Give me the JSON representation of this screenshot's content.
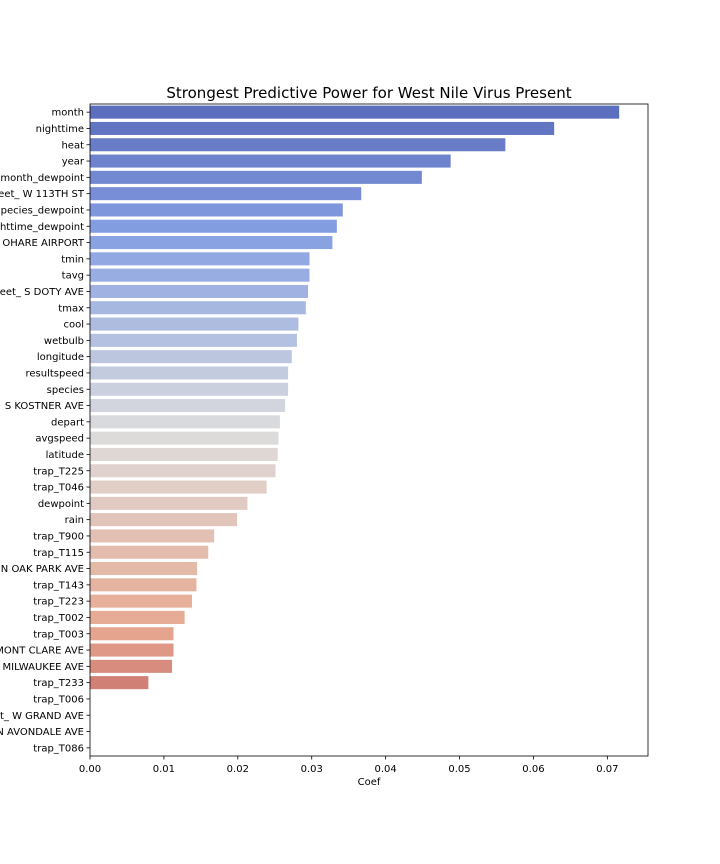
{
  "chart_data": {
    "type": "bar",
    "orientation": "horizontal",
    "title": "Strongest Predictive Power for West Nile Virus Present",
    "xlabel": "Coef",
    "ylabel": "",
    "xlim": [
      0,
      0.0755
    ],
    "xticks": [
      "0.00",
      "0.01",
      "0.02",
      "0.03",
      "0.04",
      "0.05",
      "0.06",
      "0.07"
    ],
    "grid": false,
    "colormap": "coolwarm",
    "categories": [
      "month",
      "nighttime",
      "heat",
      "year",
      "month_dewpoint",
      "eet_ W 113TH ST",
      "pecies_dewpoint",
      "httime_dewpoint",
      "OHARE AIRPORT",
      "tmin",
      "tavg",
      "eet_ S DOTY AVE",
      "tmax",
      "cool",
      "wetbulb",
      "longitude",
      "resultspeed",
      "species",
      "S KOSTNER AVE",
      "depart",
      "avgspeed",
      "latitude",
      "trap_T225",
      "trap_T046",
      "dewpoint",
      "rain",
      "trap_T900",
      "trap_T115",
      "N OAK PARK AVE",
      "trap_T143",
      "trap_T223",
      "trap_T002",
      "trap_T003",
      "MONT CLARE AVE",
      "MILWAUKEE AVE",
      "trap_T233",
      "trap_T006",
      "t_ W GRAND AVE",
      "N AVONDALE AVE",
      "trap_T086"
    ],
    "values": [
      0.0716,
      0.0628,
      0.0562,
      0.0488,
      0.0449,
      0.0367,
      0.0342,
      0.0334,
      0.0328,
      0.0297,
      0.0297,
      0.0295,
      0.0292,
      0.0282,
      0.028,
      0.0273,
      0.0268,
      0.0268,
      0.0264,
      0.0257,
      0.0255,
      0.0254,
      0.0251,
      0.0239,
      0.0213,
      0.0199,
      0.0168,
      0.016,
      0.0145,
      0.0144,
      0.0138,
      0.0128,
      0.0113,
      0.0113,
      0.0111,
      0.0079,
      0,
      0,
      0,
      0
    ]
  }
}
